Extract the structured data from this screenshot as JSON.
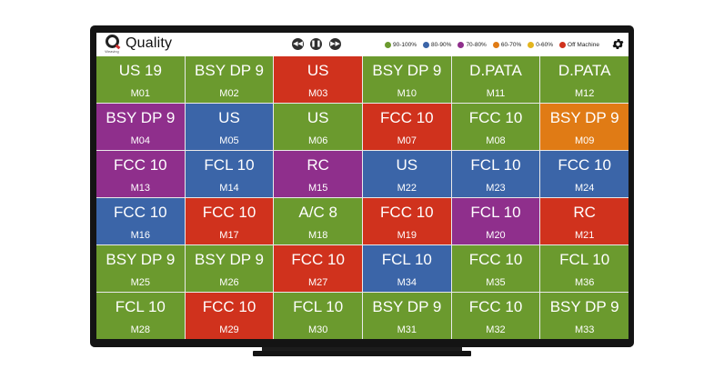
{
  "header": {
    "title": "Quality",
    "logo_text": "Q",
    "logo_brand": "Weaving"
  },
  "controls": [
    {
      "name": "rewind-button",
      "icon": "◀◀"
    },
    {
      "name": "pause-button",
      "icon": "❚❚"
    },
    {
      "name": "fast-forward-button",
      "icon": "▶▶"
    }
  ],
  "legend": [
    {
      "label": "90-100%",
      "color": "#6b9a2e"
    },
    {
      "label": "80-90%",
      "color": "#3b65a8"
    },
    {
      "label": "70-80%",
      "color": "#8f2f8c"
    },
    {
      "label": "60-70%",
      "color": "#e07b15"
    },
    {
      "label": "0-60%",
      "color": "#e3b51f"
    },
    {
      "label": "Off Machine",
      "color": "#d0321d"
    }
  ],
  "colors": {
    "green": "#6b9a2e",
    "blue": "#3b65a8",
    "purple": "#8f2f8c",
    "orange": "#e07b15",
    "red": "#d0321d"
  },
  "tiles": [
    {
      "label": "US 19",
      "id": "M01",
      "color": "green"
    },
    {
      "label": "BSY DP 9",
      "id": "M02",
      "color": "green"
    },
    {
      "label": "US",
      "id": "M03",
      "color": "red"
    },
    {
      "label": "BSY DP 9",
      "id": "M10",
      "color": "green"
    },
    {
      "label": "D.PATA",
      "id": "M11",
      "color": "green"
    },
    {
      "label": "D.PATA",
      "id": "M12",
      "color": "green"
    },
    {
      "label": "BSY DP 9",
      "id": "M04",
      "color": "purple"
    },
    {
      "label": "US",
      "id": "M05",
      "color": "blue"
    },
    {
      "label": "US",
      "id": "M06",
      "color": "green"
    },
    {
      "label": "FCC 10",
      "id": "M07",
      "color": "red"
    },
    {
      "label": "FCC 10",
      "id": "M08",
      "color": "green"
    },
    {
      "label": "BSY DP 9",
      "id": "M09",
      "color": "orange"
    },
    {
      "label": "FCC 10",
      "id": "M13",
      "color": "purple"
    },
    {
      "label": "FCL 10",
      "id": "M14",
      "color": "blue"
    },
    {
      "label": "RC",
      "id": "M15",
      "color": "purple"
    },
    {
      "label": "US",
      "id": "M22",
      "color": "blue"
    },
    {
      "label": "FCL 10",
      "id": "M23",
      "color": "blue"
    },
    {
      "label": "FCC 10",
      "id": "M24",
      "color": "blue"
    },
    {
      "label": "FCC 10",
      "id": "M16",
      "color": "blue"
    },
    {
      "label": "FCC 10",
      "id": "M17",
      "color": "red"
    },
    {
      "label": "A/C 8",
      "id": "M18",
      "color": "green"
    },
    {
      "label": "FCC 10",
      "id": "M19",
      "color": "red"
    },
    {
      "label": "FCL 10",
      "id": "M20",
      "color": "purple"
    },
    {
      "label": "RC",
      "id": "M21",
      "color": "red"
    },
    {
      "label": "BSY DP 9",
      "id": "M25",
      "color": "green"
    },
    {
      "label": "BSY DP 9",
      "id": "M26",
      "color": "green"
    },
    {
      "label": "FCC 10",
      "id": "M27",
      "color": "red"
    },
    {
      "label": "FCL 10",
      "id": "M34",
      "color": "blue"
    },
    {
      "label": "FCC 10",
      "id": "M35",
      "color": "green"
    },
    {
      "label": "FCL 10",
      "id": "M36",
      "color": "green"
    },
    {
      "label": "FCL 10",
      "id": "M28",
      "color": "green"
    },
    {
      "label": "FCC 10",
      "id": "M29",
      "color": "red"
    },
    {
      "label": "FCL 10",
      "id": "M30",
      "color": "green"
    },
    {
      "label": "BSY DP 9",
      "id": "M31",
      "color": "green"
    },
    {
      "label": "FCC 10",
      "id": "M32",
      "color": "green"
    },
    {
      "label": "BSY DP 9",
      "id": "M33",
      "color": "green"
    }
  ]
}
